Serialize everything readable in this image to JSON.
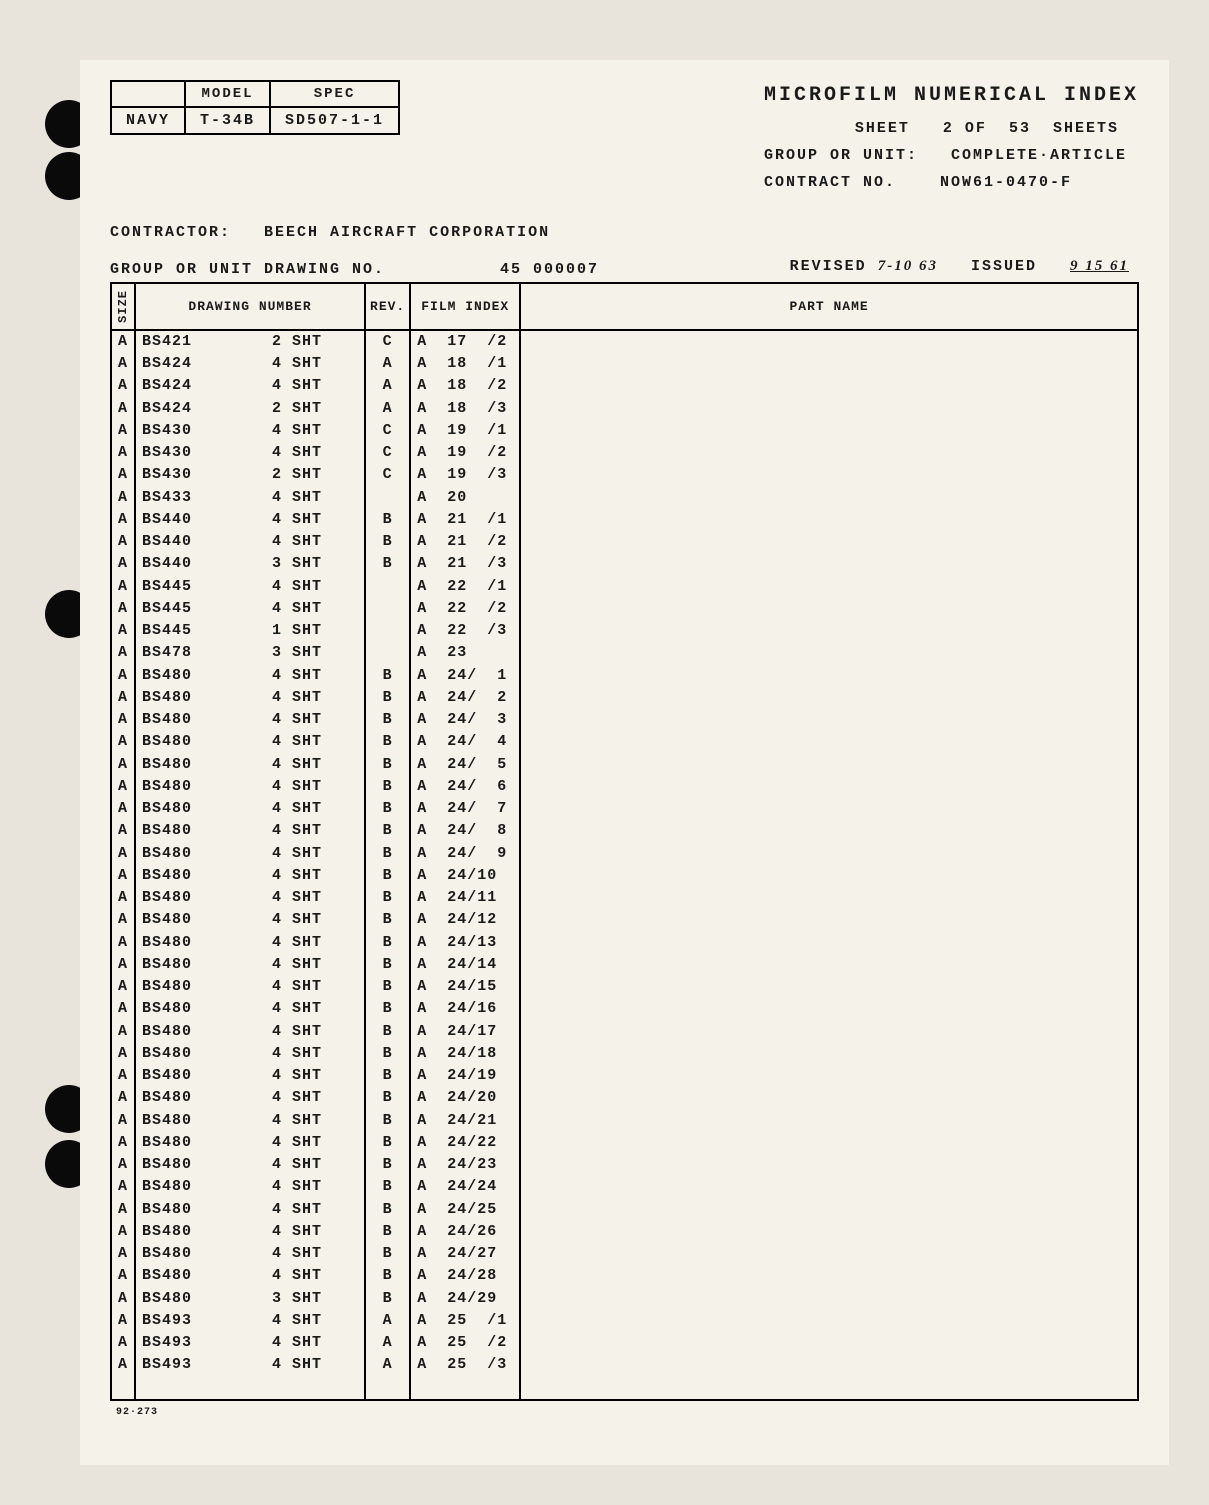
{
  "form": {
    "model_label": "MODEL",
    "spec_label": "SPEC",
    "navy": "NAVY",
    "model": "T-34B",
    "spec": "SD507-1-1"
  },
  "title": "MICROFILM NUMERICAL INDEX",
  "meta": {
    "sheet_label": "SHEET",
    "sheet_num": "2",
    "of_label": "OF",
    "sheet_total": "53",
    "sheets_label": "SHEETS",
    "group_unit_label": "GROUP OR UNIT:",
    "group_unit": "COMPLETE·ARTICLE",
    "contract_label": "CONTRACT NO.",
    "contract": "NOW61-0470-F",
    "revised_label": "REVISED",
    "revised": "7-10 63",
    "issued_label": "ISSUED",
    "issued": "9 15 61"
  },
  "contractor": {
    "label": "CONTRACTOR:",
    "value": "BEECH AIRCRAFT CORPORATION"
  },
  "group_drawing": {
    "label": "GROUP OR UNIT DRAWING NO.",
    "value": "45  000007"
  },
  "columns": {
    "size": "SIZE",
    "drawing_number": "DRAWING NUMBER",
    "rev": "REV.",
    "film_index": "FILM\nINDEX",
    "part_name": "PART NAME"
  },
  "rows": [
    {
      "size": "A",
      "dn": "BS421        2 SHT",
      "rev": "C",
      "fi": "A  17  /2",
      "pn": ""
    },
    {
      "size": "A",
      "dn": "BS424        4 SHT",
      "rev": "A",
      "fi": "A  18  /1",
      "pn": ""
    },
    {
      "size": "A",
      "dn": "BS424        4 SHT",
      "rev": "A",
      "fi": "A  18  /2",
      "pn": ""
    },
    {
      "size": "A",
      "dn": "BS424        2 SHT",
      "rev": "A",
      "fi": "A  18  /3",
      "pn": ""
    },
    {
      "size": "A",
      "dn": "BS430        4 SHT",
      "rev": "C",
      "fi": "A  19  /1",
      "pn": ""
    },
    {
      "size": "A",
      "dn": "BS430        4 SHT",
      "rev": "C",
      "fi": "A  19  /2",
      "pn": ""
    },
    {
      "size": "A",
      "dn": "BS430        2 SHT",
      "rev": "C",
      "fi": "A  19  /3",
      "pn": ""
    },
    {
      "size": "A",
      "dn": "BS433        4 SHT",
      "rev": "",
      "fi": "A  20",
      "pn": ""
    },
    {
      "size": "A",
      "dn": "BS440        4 SHT",
      "rev": "B",
      "fi": "A  21  /1",
      "pn": ""
    },
    {
      "size": "A",
      "dn": "BS440        4 SHT",
      "rev": "B",
      "fi": "A  21  /2",
      "pn": ""
    },
    {
      "size": "A",
      "dn": "BS440        3 SHT",
      "rev": "B",
      "fi": "A  21  /3",
      "pn": ""
    },
    {
      "size": "A",
      "dn": "BS445        4 SHT",
      "rev": "",
      "fi": "A  22  /1",
      "pn": ""
    },
    {
      "size": "A",
      "dn": "BS445        4 SHT",
      "rev": "",
      "fi": "A  22  /2",
      "pn": ""
    },
    {
      "size": "A",
      "dn": "BS445        1 SHT",
      "rev": "",
      "fi": "A  22  /3",
      "pn": ""
    },
    {
      "size": "A",
      "dn": "BS478        3 SHT",
      "rev": "",
      "fi": "A  23",
      "pn": ""
    },
    {
      "size": "A",
      "dn": "BS480        4 SHT",
      "rev": "B",
      "fi": "A  24/  1",
      "pn": ""
    },
    {
      "size": "A",
      "dn": "BS480        4 SHT",
      "rev": "B",
      "fi": "A  24/  2",
      "pn": ""
    },
    {
      "size": "A",
      "dn": "BS480        4 SHT",
      "rev": "B",
      "fi": "A  24/  3",
      "pn": ""
    },
    {
      "size": "A",
      "dn": "BS480        4 SHT",
      "rev": "B",
      "fi": "A  24/  4",
      "pn": ""
    },
    {
      "size": "A",
      "dn": "BS480        4 SHT",
      "rev": "B",
      "fi": "A  24/  5",
      "pn": ""
    },
    {
      "size": "A",
      "dn": "BS480        4 SHT",
      "rev": "B",
      "fi": "A  24/  6",
      "pn": ""
    },
    {
      "size": "A",
      "dn": "BS480        4 SHT",
      "rev": "B",
      "fi": "A  24/  7",
      "pn": ""
    },
    {
      "size": "A",
      "dn": "BS480        4 SHT",
      "rev": "B",
      "fi": "A  24/  8",
      "pn": ""
    },
    {
      "size": "A",
      "dn": "BS480        4 SHT",
      "rev": "B",
      "fi": "A  24/  9",
      "pn": ""
    },
    {
      "size": "A",
      "dn": "BS480        4 SHT",
      "rev": "B",
      "fi": "A  24/10",
      "pn": ""
    },
    {
      "size": "A",
      "dn": "BS480        4 SHT",
      "rev": "B",
      "fi": "A  24/11",
      "pn": ""
    },
    {
      "size": "A",
      "dn": "BS480        4 SHT",
      "rev": "B",
      "fi": "A  24/12",
      "pn": ""
    },
    {
      "size": "A",
      "dn": "BS480        4 SHT",
      "rev": "B",
      "fi": "A  24/13",
      "pn": ""
    },
    {
      "size": "A",
      "dn": "BS480        4 SHT",
      "rev": "B",
      "fi": "A  24/14",
      "pn": ""
    },
    {
      "size": "A",
      "dn": "BS480        4 SHT",
      "rev": "B",
      "fi": "A  24/15",
      "pn": ""
    },
    {
      "size": "A",
      "dn": "BS480        4 SHT",
      "rev": "B",
      "fi": "A  24/16",
      "pn": ""
    },
    {
      "size": "A",
      "dn": "BS480        4 SHT",
      "rev": "B",
      "fi": "A  24/17",
      "pn": ""
    },
    {
      "size": "A",
      "dn": "BS480        4 SHT",
      "rev": "B",
      "fi": "A  24/18",
      "pn": ""
    },
    {
      "size": "A",
      "dn": "BS480        4 SHT",
      "rev": "B",
      "fi": "A  24/19",
      "pn": ""
    },
    {
      "size": "A",
      "dn": "BS480        4 SHT",
      "rev": "B",
      "fi": "A  24/20",
      "pn": ""
    },
    {
      "size": "A",
      "dn": "BS480        4 SHT",
      "rev": "B",
      "fi": "A  24/21",
      "pn": ""
    },
    {
      "size": "A",
      "dn": "BS480        4 SHT",
      "rev": "B",
      "fi": "A  24/22",
      "pn": ""
    },
    {
      "size": "A",
      "dn": "BS480        4 SHT",
      "rev": "B",
      "fi": "A  24/23",
      "pn": ""
    },
    {
      "size": "A",
      "dn": "BS480        4 SHT",
      "rev": "B",
      "fi": "A  24/24",
      "pn": ""
    },
    {
      "size": "A",
      "dn": "BS480        4 SHT",
      "rev": "B",
      "fi": "A  24/25",
      "pn": ""
    },
    {
      "size": "A",
      "dn": "BS480        4 SHT",
      "rev": "B",
      "fi": "A  24/26",
      "pn": ""
    },
    {
      "size": "A",
      "dn": "BS480        4 SHT",
      "rev": "B",
      "fi": "A  24/27",
      "pn": ""
    },
    {
      "size": "A",
      "dn": "BS480        4 SHT",
      "rev": "B",
      "fi": "A  24/28",
      "pn": ""
    },
    {
      "size": "A",
      "dn": "BS480        3 SHT",
      "rev": "B",
      "fi": "A  24/29",
      "pn": ""
    },
    {
      "size": "A",
      "dn": "BS493        4 SHT",
      "rev": "A",
      "fi": "A  25  /1",
      "pn": ""
    },
    {
      "size": "A",
      "dn": "BS493        4 SHT",
      "rev": "A",
      "fi": "A  25  /2",
      "pn": ""
    },
    {
      "size": "A",
      "dn": "BS493        4 SHT",
      "rev": "A",
      "fi": "A  25  /3",
      "pn": ""
    }
  ],
  "form_no": "92·273",
  "style": {
    "bg_outer": "#e8e4dc",
    "bg_page": "#f5f2ea",
    "text": "#1a1a1a",
    "border": "#000000"
  }
}
